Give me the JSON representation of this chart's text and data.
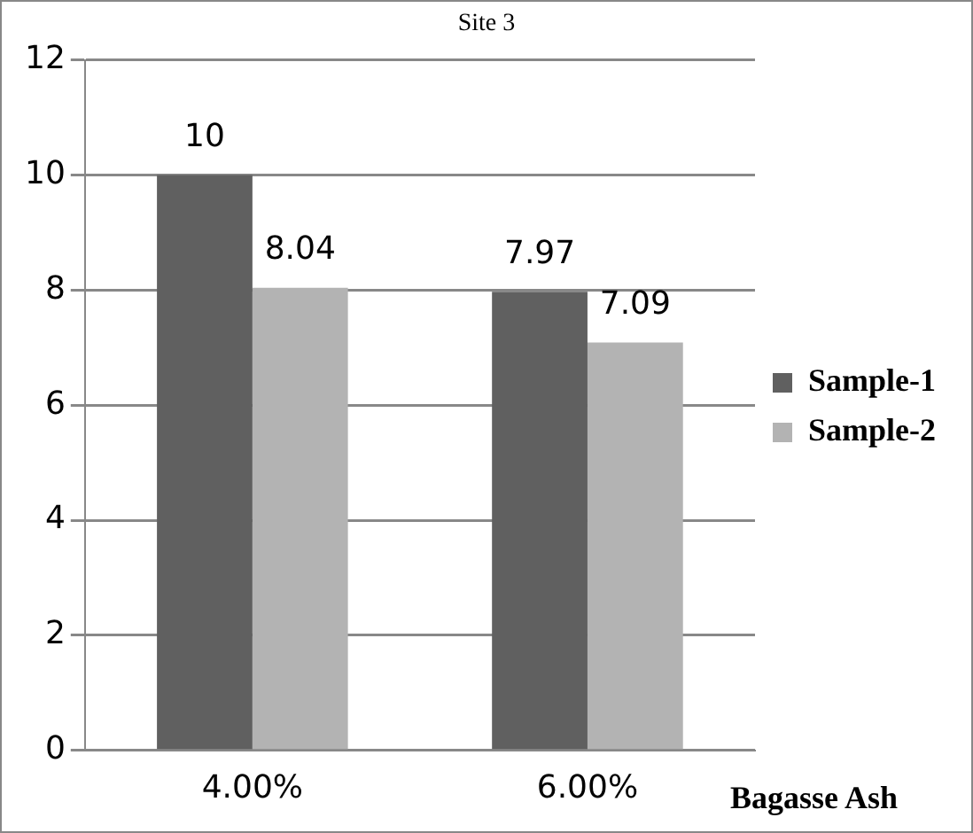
{
  "chart_data": {
    "type": "bar",
    "title": "Site 3",
    "xlabel": "Bagasse Ash",
    "categories": [
      "4.00%",
      "6.00%"
    ],
    "series": [
      {
        "name": "Sample-1",
        "color": "#606060",
        "values": [
          10,
          7.97
        ]
      },
      {
        "name": "Sample-2",
        "color": "#b3b3b3",
        "values": [
          8.04,
          7.09
        ]
      }
    ],
    "ylim": [
      0,
      12
    ],
    "yticks": [
      0,
      2,
      4,
      6,
      8,
      10,
      12
    ],
    "grid": "y",
    "legend": "right",
    "data_labels": true
  }
}
